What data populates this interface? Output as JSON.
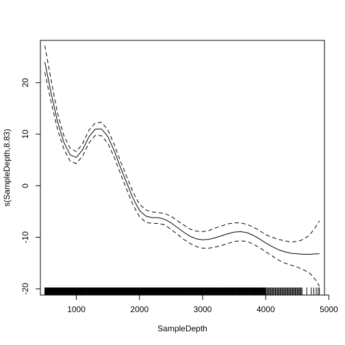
{
  "chart_data": {
    "type": "line",
    "xlabel": "SampleDepth",
    "ylabel": "s(SampleDepth,8.83)",
    "xlim": [
      430,
      4930
    ],
    "ylim": [
      -21.2,
      28.2
    ],
    "xticks": [
      1000,
      2000,
      3000,
      4000,
      5000
    ],
    "yticks": [
      -20,
      -10,
      0,
      10,
      20
    ],
    "grid": false,
    "series": [
      {
        "style": "solid",
        "x": [
          500,
          600,
          700,
          800,
          900,
          1000,
          1100,
          1200,
          1300,
          1400,
          1500,
          1600,
          1700,
          1800,
          1900,
          2000,
          2100,
          2200,
          2300,
          2400,
          2500,
          2600,
          2700,
          2800,
          2900,
          3000,
          3100,
          3200,
          3300,
          3400,
          3500,
          3600,
          3700,
          3800,
          3900,
          4000,
          4100,
          4200,
          4300,
          4400,
          4500,
          4600,
          4700,
          4800,
          4850
        ],
        "y": [
          24.0,
          18.0,
          12.5,
          8.5,
          6.0,
          5.5,
          7.0,
          9.5,
          11.0,
          11.0,
          9.5,
          6.8,
          3.5,
          0.5,
          -2.5,
          -4.8,
          -5.9,
          -6.2,
          -6.2,
          -6.5,
          -7.2,
          -8.1,
          -9.0,
          -9.8,
          -10.3,
          -10.5,
          -10.4,
          -10.1,
          -9.7,
          -9.3,
          -9.0,
          -8.9,
          -9.1,
          -9.6,
          -10.3,
          -11.1,
          -11.8,
          -12.4,
          -12.8,
          -13.1,
          -13.2,
          -13.3,
          -13.3,
          -13.2,
          -13.2
        ]
      },
      {
        "style": "dashed",
        "x": [
          500,
          600,
          700,
          800,
          900,
          1000,
          1100,
          1200,
          1300,
          1400,
          1500,
          1600,
          1700,
          1800,
          1900,
          2000,
          2100,
          2200,
          2300,
          2400,
          2500,
          2600,
          2700,
          2800,
          2900,
          3000,
          3100,
          3200,
          3300,
          3400,
          3500,
          3600,
          3700,
          3800,
          3900,
          4000,
          4100,
          4200,
          4300,
          4400,
          4500,
          4600,
          4700,
          4800,
          4850
        ],
        "y": [
          27.2,
          20.5,
          14.2,
          9.8,
          7.3,
          6.6,
          8.2,
          10.8,
          12.2,
          12.3,
          10.8,
          8.0,
          4.7,
          1.7,
          -1.3,
          -3.6,
          -4.7,
          -5.1,
          -5.2,
          -5.4,
          -5.9,
          -6.8,
          -7.6,
          -8.4,
          -8.8,
          -8.9,
          -8.7,
          -8.2,
          -7.8,
          -7.4,
          -7.2,
          -7.2,
          -7.5,
          -8.0,
          -8.7,
          -9.5,
          -10.0,
          -10.4,
          -10.7,
          -10.9,
          -10.8,
          -10.4,
          -9.5,
          -7.8,
          -6.8
        ]
      },
      {
        "style": "dashed",
        "x": [
          500,
          600,
          700,
          800,
          900,
          1000,
          1100,
          1200,
          1300,
          1400,
          1500,
          1600,
          1700,
          1800,
          1900,
          2000,
          2100,
          2200,
          2300,
          2400,
          2500,
          2600,
          2700,
          2800,
          2900,
          3000,
          3100,
          3200,
          3300,
          3400,
          3500,
          3600,
          3700,
          3800,
          3900,
          4000,
          4100,
          4200,
          4300,
          4400,
          4500,
          4600,
          4700,
          4800,
          4850
        ],
        "y": [
          22.0,
          16.2,
          11.0,
          7.2,
          4.8,
          4.3,
          5.8,
          8.3,
          9.8,
          9.7,
          8.2,
          5.5,
          2.3,
          -0.8,
          -3.8,
          -6.0,
          -7.1,
          -7.3,
          -7.3,
          -7.6,
          -8.5,
          -9.4,
          -10.4,
          -11.2,
          -11.8,
          -12.1,
          -12.1,
          -11.9,
          -11.6,
          -11.2,
          -10.8,
          -10.7,
          -10.8,
          -11.3,
          -12.0,
          -12.8,
          -13.6,
          -14.4,
          -15.0,
          -15.4,
          -15.8,
          -16.3,
          -17.0,
          -18.4,
          -19.5
        ]
      }
    ],
    "rug": [
      500,
      505,
      510,
      515,
      520,
      525,
      530,
      535,
      540,
      545,
      550,
      555,
      560,
      565,
      570,
      575,
      580,
      585,
      590,
      595,
      600,
      605,
      610,
      615,
      620,
      625,
      630,
      635,
      640,
      645,
      650,
      655,
      660,
      665,
      670,
      675,
      680,
      685,
      690,
      695,
      700,
      705,
      710,
      715,
      720,
      725,
      730,
      735,
      740,
      745,
      750,
      755,
      760,
      765,
      770,
      775,
      780,
      785,
      790,
      795,
      800,
      805,
      810,
      815,
      820,
      825,
      830,
      835,
      840,
      845,
      850,
      855,
      860,
      865,
      870,
      875,
      880,
      885,
      890,
      895,
      900,
      905,
      910,
      915,
      920,
      925,
      930,
      935,
      940,
      945,
      950,
      955,
      960,
      965,
      970,
      975,
      980,
      985,
      990,
      995,
      1000,
      1005,
      1010,
      1015,
      1020,
      1025,
      1030,
      1035,
      1040,
      1045,
      1050,
      1055,
      1060,
      1065,
      1070,
      1075,
      1080,
      1085,
      1090,
      1095,
      1100,
      1105,
      1110,
      1115,
      1120,
      1125,
      1130,
      1135,
      1140,
      1145,
      1155,
      1160,
      1165,
      1170,
      1175,
      1180,
      1185,
      1190,
      1195,
      1200,
      1205,
      1210,
      1215,
      1220,
      1225,
      1230,
      1235,
      1240,
      1245,
      1250,
      1255,
      1260,
      1265,
      1270,
      1275,
      1280,
      1285,
      1290,
      1295,
      1300,
      1305,
      1310,
      1315,
      1320,
      1325,
      1330,
      1335,
      1340,
      1345,
      1350,
      1355,
      1360,
      1365,
      1370,
      1375,
      1380,
      1385,
      1390,
      1395,
      1400,
      1405,
      1410,
      1415,
      1420,
      1425,
      1430,
      1435,
      1440,
      1445,
      1450,
      1455,
      1460,
      1465,
      1470,
      1475,
      1480,
      1485,
      1490,
      1495,
      1500,
      1505,
      1510,
      1515,
      1520,
      1525,
      1530,
      1535,
      1540,
      1545,
      1550,
      1555,
      1560,
      1565,
      1570,
      1575,
      1580,
      1585,
      1590,
      1595,
      1600,
      1605,
      1610,
      1615,
      1620,
      1625,
      1630,
      1635,
      1640,
      1645,
      1650,
      1655,
      1660,
      1665,
      1670,
      1675,
      1680,
      1685,
      1690,
      1695,
      1700,
      1705,
      1710,
      1715,
      1720,
      1725,
      1730,
      1735,
      1740,
      1745,
      1750,
      1755,
      1760,
      1765,
      1770,
      1775,
      1780,
      1785,
      1790,
      1795,
      1800,
      1805,
      1810,
      1815,
      1820,
      1825,
      1830,
      1835,
      1840,
      1845,
      1850,
      1855,
      1860,
      1865,
      1870,
      1875,
      1880,
      1885,
      1890,
      1895,
      1900,
      1905,
      1910,
      1915,
      1920,
      1925,
      1930,
      1935,
      1940,
      1945,
      1950,
      1955,
      1960,
      1965,
      1970,
      1975,
      1980,
      1985,
      1990,
      1995,
      2000,
      2005,
      2010,
      2015,
      2020,
      2025,
      2030,
      2035,
      2040,
      2045,
      2050,
      2055,
      2060,
      2065,
      2070,
      2075,
      2080,
      2085,
      2090,
      2095,
      2100,
      2105,
      2110,
      2115,
      2120,
      2125,
      2130,
      2135,
      2140,
      2145,
      2150,
      2155,
      2160,
      2165,
      2170,
      2175,
      2180,
      2185,
      2190,
      2195,
      2200,
      2205,
      2210,
      2215,
      2220,
      2225,
      2230,
      2235,
      2240,
      2245,
      2250,
      2255,
      2260,
      2265,
      2270,
      2275,
      2280,
      2285,
      2290,
      2295,
      2300,
      2305,
      2310,
      2315,
      2320,
      2325,
      2330,
      2335,
      2340,
      2345,
      2350,
      2355,
      2360,
      2365,
      2370,
      2375,
      2380,
      2385,
      2390,
      2395,
      2400,
      2405,
      2410,
      2415,
      2420,
      2425,
      2430,
      2435,
      2440,
      2445,
      2450,
      2455,
      2460,
      2465,
      2470,
      2475,
      2480,
      2485,
      2490,
      2495,
      2500,
      2505,
      2510,
      2515,
      2520,
      2525,
      2530,
      2535,
      2540,
      2545,
      2550,
      2555,
      2560,
      2565,
      2570,
      2575,
      2580,
      2585,
      2590,
      2595,
      2600,
      2605,
      2610,
      2615,
      2620,
      2625,
      2630,
      2635,
      2640,
      2645,
      2650,
      2655,
      2660,
      2665,
      2670,
      2675,
      2680,
      2685,
      2690,
      2695,
      2700,
      2705,
      2710,
      2715,
      2720,
      2725,
      2730,
      2735,
      2740,
      2745,
      2750,
      2755,
      2760,
      2765,
      2770,
      2775,
      2780,
      2785,
      2790,
      2795,
      2800,
      2808,
      2815,
      2822,
      2830,
      2838,
      2845,
      2853,
      2860,
      2868,
      2875,
      2883,
      2890,
      2898,
      2905,
      2913,
      2920,
      2928,
      2935,
      2943,
      2950,
      2958,
      2965,
      2973,
      2980,
      2988,
      2995,
      3003,
      3010,
      3018,
      3025,
      3033,
      3040,
      3048,
      3055,
      3063,
      3070,
      3078,
      3085,
      3093,
      3100,
      3108,
      3115,
      3123,
      3130,
      3138,
      3145,
      3153,
      3160,
      3168,
      3175,
      3183,
      3190,
      3198,
      3205,
      3213,
      3220,
      3228,
      3235,
      3243,
      3250,
      3258,
      3265,
      3273,
      3280,
      3288,
      3295,
      3303,
      3310,
      3318,
      3325,
      3333,
      3340,
      3348,
      3355,
      3363,
      3370,
      3378,
      3385,
      3393,
      3400,
      3408,
      3415,
      3423,
      3430,
      3438,
      3445,
      3453,
      3460,
      3468,
      3475,
      3483,
      3490,
      3498,
      3505,
      3513,
      3520,
      3528,
      3535,
      3543,
      3550,
      3558,
      3565,
      3573,
      3580,
      3588,
      3595,
      3603,
      3610,
      3618,
      3625,
      3633,
      3640,
      3648,
      3655,
      3663,
      3670,
      3678,
      3685,
      3693,
      3700,
      3708,
      3715,
      3723,
      3730,
      3738,
      3745,
      3753,
      3760,
      3768,
      3775,
      3783,
      3790,
      3798,
      3805,
      3813,
      3820,
      3828,
      3835,
      3843,
      3850,
      3858,
      3865,
      3873,
      3880,
      3888,
      3895,
      3903,
      3910,
      3918,
      3925,
      3933,
      3940,
      3948,
      3955,
      3963,
      3970,
      3978,
      3985,
      3993,
      4005,
      4020,
      4035,
      4050,
      4065,
      4080,
      4095,
      4110,
      4125,
      4140,
      4155,
      4170,
      4185,
      4200,
      4215,
      4230,
      4245,
      4260,
      4275,
      4290,
      4305,
      4320,
      4335,
      4350,
      4365,
      4380,
      4395,
      4410,
      4425,
      4440,
      4455,
      4470,
      4485,
      4500,
      4515,
      4530,
      4545,
      4560,
      4575,
      4650,
      4720,
      4760,
      4800,
      4830,
      4850
    ]
  }
}
